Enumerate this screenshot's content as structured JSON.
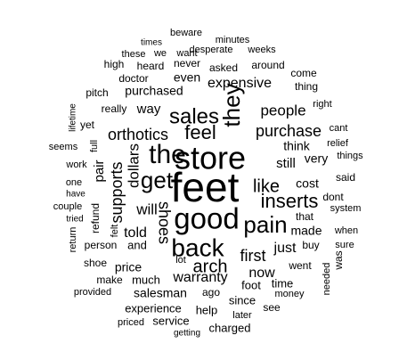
{
  "word_cloud": {
    "text_color": "#000000",
    "background_color": "#ffffff",
    "words": [
      {
        "text": "feet",
        "rank": 1
      },
      {
        "text": "good",
        "rank": 2
      },
      {
        "text": "store",
        "rank": 3
      },
      {
        "text": "the",
        "rank": 4
      },
      {
        "text": "back",
        "rank": 5
      },
      {
        "text": "get",
        "rank": 6
      },
      {
        "text": "pain",
        "rank": 7
      },
      {
        "text": "they",
        "rank": 8
      },
      {
        "text": "inserts",
        "rank": 9
      },
      {
        "text": "sales",
        "rank": 10
      },
      {
        "text": "feel",
        "rank": 11
      },
      {
        "text": "arch",
        "rank": 12
      },
      {
        "text": "like",
        "rank": 13
      },
      {
        "text": "first",
        "rank": 14
      },
      {
        "text": "shoes",
        "rank": 15
      },
      {
        "text": "supports",
        "rank": 16
      },
      {
        "text": "dollars",
        "rank": 17
      },
      {
        "text": "orthotics",
        "rank": 18
      },
      {
        "text": "will",
        "rank": 19
      },
      {
        "text": "purchase",
        "rank": 20
      },
      {
        "text": "people",
        "rank": 21
      },
      {
        "text": "expensive",
        "rank": 22
      },
      {
        "text": "warranty",
        "rank": 23
      },
      {
        "text": "told",
        "rank": 24
      },
      {
        "text": "now",
        "rank": 25
      },
      {
        "text": "just",
        "rank": 26
      },
      {
        "text": "pair",
        "rank": 27
      },
      {
        "text": "way",
        "rank": 28
      },
      {
        "text": "purchased",
        "rank": 29
      },
      {
        "text": "even",
        "rank": 30
      },
      {
        "text": "still",
        "rank": 31
      },
      {
        "text": "very",
        "rank": 32
      },
      {
        "text": "made",
        "rank": 33
      },
      {
        "text": "cost",
        "rank": 34
      },
      {
        "text": "think",
        "rank": 35
      },
      {
        "text": "price",
        "rank": 36
      },
      {
        "text": "salesman",
        "rank": 37
      },
      {
        "text": "experience",
        "rank": 38
      },
      {
        "text": "much",
        "rank": 39
      },
      {
        "text": "and",
        "rank": 40
      },
      {
        "text": "foot",
        "rank": 41
      },
      {
        "text": "time",
        "rank": 42
      },
      {
        "text": "went",
        "rank": 43
      },
      {
        "text": "buy",
        "rank": 44
      },
      {
        "text": "since",
        "rank": 45
      },
      {
        "text": "help",
        "rank": 46
      },
      {
        "text": "service",
        "rank": 47
      },
      {
        "text": "charged",
        "rank": 48
      },
      {
        "text": "said",
        "rank": 49
      },
      {
        "text": "dont",
        "rank": 50
      },
      {
        "text": "person",
        "rank": 51
      },
      {
        "text": "really",
        "rank": 52
      },
      {
        "text": "that",
        "rank": 53
      },
      {
        "text": "asked",
        "rank": 54
      },
      {
        "text": "never",
        "rank": 55
      },
      {
        "text": "heard",
        "rank": 56
      },
      {
        "text": "desperate",
        "rank": 57
      },
      {
        "text": "weeks",
        "rank": 58
      },
      {
        "text": "these",
        "rank": 59
      },
      {
        "text": "we",
        "rank": 60
      },
      {
        "text": "want",
        "rank": 61
      },
      {
        "text": "beware",
        "rank": 62
      },
      {
        "text": "times",
        "rank": 63
      },
      {
        "text": "minutes",
        "rank": 64
      },
      {
        "text": "around",
        "rank": 65
      },
      {
        "text": "come",
        "rank": 66
      },
      {
        "text": "thing",
        "rank": 67
      },
      {
        "text": "doctor",
        "rank": 68
      },
      {
        "text": "high",
        "rank": 69
      },
      {
        "text": "pitch",
        "rank": 70
      },
      {
        "text": "right",
        "rank": 71
      },
      {
        "text": "cant",
        "rank": 72
      },
      {
        "text": "relief",
        "rank": 73
      },
      {
        "text": "things",
        "rank": 74
      },
      {
        "text": "system",
        "rank": 75
      },
      {
        "text": "when",
        "rank": 76
      },
      {
        "text": "sure",
        "rank": 77
      },
      {
        "text": "was",
        "rank": 78
      },
      {
        "text": "needed",
        "rank": 79
      },
      {
        "text": "money",
        "rank": 80
      },
      {
        "text": "see",
        "rank": 81
      },
      {
        "text": "later",
        "rank": 82
      },
      {
        "text": "ago",
        "rank": 83
      },
      {
        "text": "getting",
        "rank": 84
      },
      {
        "text": "priced",
        "rank": 85
      },
      {
        "text": "provided",
        "rank": 86
      },
      {
        "text": "make",
        "rank": 87
      },
      {
        "text": "shoe",
        "rank": 88
      },
      {
        "text": "lot",
        "rank": 89
      },
      {
        "text": "return",
        "rank": 90
      },
      {
        "text": "tried",
        "rank": 91
      },
      {
        "text": "couple",
        "rank": 92
      },
      {
        "text": "have",
        "rank": 93
      },
      {
        "text": "one",
        "rank": 94
      },
      {
        "text": "work",
        "rank": 95
      },
      {
        "text": "seems",
        "rank": 96
      },
      {
        "text": "yet",
        "rank": 97
      },
      {
        "text": "lifetime",
        "rank": 98
      },
      {
        "text": "full",
        "rank": 99
      },
      {
        "text": "refund",
        "rank": 100
      },
      {
        "text": "felt",
        "rank": 101
      }
    ]
  }
}
